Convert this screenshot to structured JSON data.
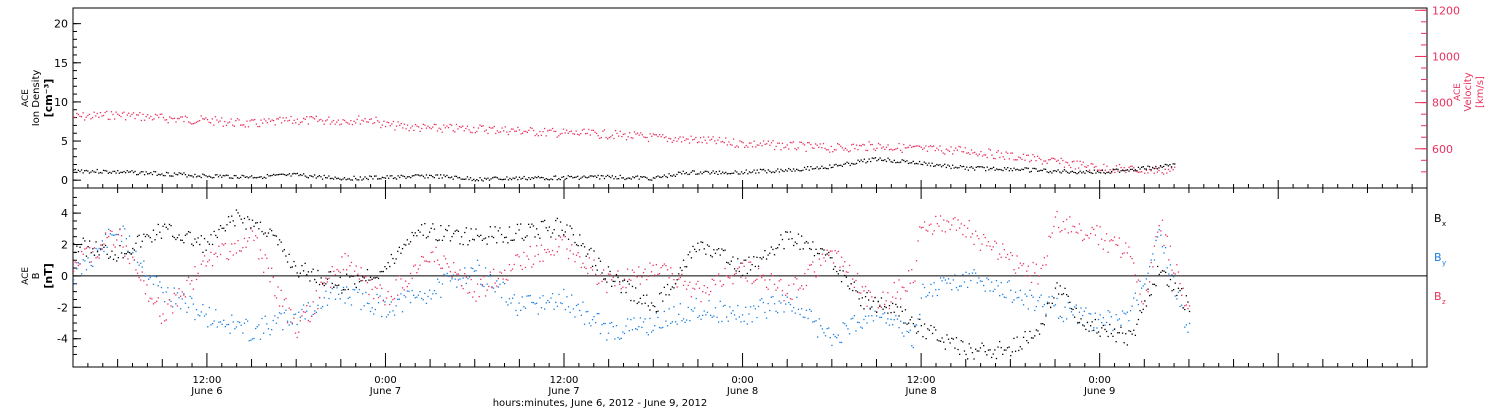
{
  "chart_data": [
    {
      "type": "scatter",
      "title": "",
      "x_range": [
        "2012-06-06 03:00",
        "2012-06-09 22:00"
      ],
      "x_ticks": [
        {
          "time": "2012-06-06 12:00",
          "label": "12:00",
          "sub": "June 6"
        },
        {
          "time": "2012-06-07 00:00",
          "label": "0:00",
          "sub": "June 7"
        },
        {
          "time": "2012-06-07 12:00",
          "label": "12:00",
          "sub": "June 7"
        },
        {
          "time": "2012-06-08 00:00",
          "label": "0:00",
          "sub": "June 8"
        },
        {
          "time": "2012-06-08 12:00",
          "label": "12:00",
          "sub": "June 8"
        },
        {
          "time": "2012-06-09 00:00",
          "label": "0:00",
          "sub": "June 9"
        }
      ],
      "ylabel": {
        "line1": "ACE",
        "line2": "Ion Density",
        "units": "[cm⁻³]"
      },
      "y_ticks": [
        "0",
        "5",
        "10",
        "15",
        "20"
      ],
      "ylim": [
        -1,
        22
      ],
      "y2label": {
        "line1": "ACE",
        "line2": "Velocity",
        "units": "[km/s]"
      },
      "y2_ticks": [
        "600",
        "800",
        "1000",
        "1200"
      ],
      "y2lim": [
        430,
        1210
      ],
      "series": [
        {
          "axis": "left",
          "color": "#000000",
          "points": [
            [
              "2012-06-06 03:00",
              1.3
            ],
            [
              "2012-06-06 06:00",
              1.1
            ],
            [
              "2012-06-06 09:00",
              0.9
            ],
            [
              "2012-06-06 12:00",
              0.6
            ],
            [
              "2012-06-06 15:00",
              0.5
            ],
            [
              "2012-06-06 18:00",
              0.7
            ],
            [
              "2012-06-06 21:00",
              0.3
            ],
            [
              "2012-06-07 00:00",
              0.4
            ],
            [
              "2012-06-07 03:00",
              0.6
            ],
            [
              "2012-06-07 06:00",
              0.2
            ],
            [
              "2012-06-07 09:00",
              0.3
            ],
            [
              "2012-06-07 12:00",
              0.4
            ],
            [
              "2012-06-07 15:00",
              0.5
            ],
            [
              "2012-06-07 18:00",
              0.3
            ],
            [
              "2012-06-07 20:00",
              1.0
            ],
            [
              "2012-06-08 00:00",
              1.1
            ],
            [
              "2012-06-08 03:00",
              1.4
            ],
            [
              "2012-06-08 06:00",
              1.8
            ],
            [
              "2012-06-08 09:00",
              2.8
            ],
            [
              "2012-06-08 12:00",
              2.2
            ],
            [
              "2012-06-08 15:00",
              1.6
            ],
            [
              "2012-06-08 18:00",
              1.5
            ],
            [
              "2012-06-08 21:00",
              1.2
            ],
            [
              "2012-06-09 00:00",
              1.1
            ],
            [
              "2012-06-09 03:00",
              1.6
            ],
            [
              "2012-06-09 05:00",
              2.0
            ]
          ]
        },
        {
          "axis": "right",
          "color": "#e8325f",
          "points": [
            [
              "2012-06-06 03:00",
              740
            ],
            [
              "2012-06-06 06:00",
              750
            ],
            [
              "2012-06-06 09:00",
              735
            ],
            [
              "2012-06-06 12:00",
              725
            ],
            [
              "2012-06-06 15:00",
              710
            ],
            [
              "2012-06-06 18:00",
              725
            ],
            [
              "2012-06-06 21:00",
              725
            ],
            [
              "2012-06-06 23:00",
              730
            ],
            [
              "2012-06-07 00:00",
              705
            ],
            [
              "2012-06-07 03:00",
              690
            ],
            [
              "2012-06-07 06:00",
              690
            ],
            [
              "2012-06-07 09:00",
              680
            ],
            [
              "2012-06-07 12:00",
              670
            ],
            [
              "2012-06-07 15:00",
              665
            ],
            [
              "2012-06-07 18:00",
              650
            ],
            [
              "2012-06-07 21:00",
              640
            ],
            [
              "2012-06-08 00:00",
              625
            ],
            [
              "2012-06-08 03:00",
              615
            ],
            [
              "2012-06-08 06:00",
              605
            ],
            [
              "2012-06-08 09:00",
              615
            ],
            [
              "2012-06-08 12:00",
              600
            ],
            [
              "2012-06-08 15:00",
              595
            ],
            [
              "2012-06-08 18:00",
              570
            ],
            [
              "2012-06-08 21:00",
              545
            ],
            [
              "2012-06-09 00:00",
              520
            ],
            [
              "2012-06-09 03:00",
              510
            ],
            [
              "2012-06-09 05:00",
              510
            ]
          ]
        }
      ]
    },
    {
      "type": "scatter",
      "title": "",
      "ylabel": {
        "line1": "ACE",
        "line2": "B",
        "units": "[nT]"
      },
      "y_ticks": [
        "-4",
        "-2",
        "0",
        "2",
        "4"
      ],
      "ylim": [
        -5.8,
        5.6
      ],
      "xlabel": "hours:minutes, June  6, 2012 - June  9, 2012",
      "legend_position": "right",
      "series": [
        {
          "name": "Bx",
          "label_main": "B",
          "label_sub": "x",
          "color": "#000000",
          "points": [
            [
              "2012-06-06 03:00",
              2.0
            ],
            [
              "2012-06-06 06:00",
              1.5
            ],
            [
              "2012-06-06 09:00",
              3.0
            ],
            [
              "2012-06-06 12:00",
              2.0
            ],
            [
              "2012-06-06 14:00",
              3.8
            ],
            [
              "2012-06-06 16:00",
              3.0
            ],
            [
              "2012-06-06 18:00",
              0.5
            ],
            [
              "2012-06-06 21:00",
              -0.5
            ],
            [
              "2012-06-07 00:00",
              0.5
            ],
            [
              "2012-06-07 02:00",
              3.0
            ],
            [
              "2012-06-07 06:00",
              2.5
            ],
            [
              "2012-06-07 09:00",
              2.8
            ],
            [
              "2012-06-07 12:00",
              3.2
            ],
            [
              "2012-06-07 15:00",
              0.0
            ],
            [
              "2012-06-07 18:00",
              -2.0
            ],
            [
              "2012-06-07 21:00",
              2.0
            ],
            [
              "2012-06-08 00:00",
              0.5
            ],
            [
              "2012-06-08 03:00",
              2.5
            ],
            [
              "2012-06-08 06:00",
              1.0
            ],
            [
              "2012-06-08 08:00",
              -1.5
            ],
            [
              "2012-06-08 10:00",
              -2.0
            ],
            [
              "2012-06-08 11:30",
              -3.0
            ],
            [
              "2012-06-08 15:00",
              -4.8
            ],
            [
              "2012-06-08 18:00",
              -4.6
            ],
            [
              "2012-06-08 20:00",
              -3.5
            ],
            [
              "2012-06-08 21:00",
              -0.5
            ],
            [
              "2012-06-08 23:00",
              -3.0
            ],
            [
              "2012-06-09 02:00",
              -4.0
            ],
            [
              "2012-06-09 04:00",
              0.5
            ],
            [
              "2012-06-09 06:00",
              -2.0
            ]
          ]
        },
        {
          "name": "By",
          "label_main": "B",
          "label_sub": "y",
          "color": "#1a7ee0",
          "points": [
            [
              "2012-06-06 03:00",
              0.0
            ],
            [
              "2012-06-06 06:00",
              3.0
            ],
            [
              "2012-06-06 09:00",
              -1.0
            ],
            [
              "2012-06-06 12:00",
              -2.5
            ],
            [
              "2012-06-06 15:00",
              -3.5
            ],
            [
              "2012-06-06 18:00",
              -2.5
            ],
            [
              "2012-06-06 21:00",
              -1.0
            ],
            [
              "2012-06-07 00:00",
              -2.0
            ],
            [
              "2012-06-07 03:00",
              -1.0
            ],
            [
              "2012-06-07 06:00",
              0.5
            ],
            [
              "2012-06-07 09:00",
              -2.0
            ],
            [
              "2012-06-07 12:00",
              -1.5
            ],
            [
              "2012-06-07 15:00",
              -3.5
            ],
            [
              "2012-06-07 18:00",
              -3.0
            ],
            [
              "2012-06-07 21:00",
              -2.0
            ],
            [
              "2012-06-08 00:00",
              -2.5
            ],
            [
              "2012-06-08 03:00",
              -1.5
            ],
            [
              "2012-06-08 06:00",
              -4.0
            ],
            [
              "2012-06-08 09:00",
              -2.0
            ],
            [
              "2012-06-08 11:30",
              -4.0
            ],
            [
              "2012-06-08 12:00",
              -1.0
            ],
            [
              "2012-06-08 15:00",
              0.0
            ],
            [
              "2012-06-08 18:00",
              -1.0
            ],
            [
              "2012-06-08 21:00",
              -2.0
            ],
            [
              "2012-06-09 00:00",
              -3.0
            ],
            [
              "2012-06-09 02:00",
              -2.5
            ],
            [
              "2012-06-09 04:00",
              2.5
            ],
            [
              "2012-06-09 06:00",
              -3.5
            ]
          ]
        },
        {
          "name": "Bz",
          "label_main": "B",
          "label_sub": "z",
          "color": "#e8325f",
          "points": [
            [
              "2012-06-06 03:00",
              1.0
            ],
            [
              "2012-06-06 06:00",
              2.5
            ],
            [
              "2012-06-06 09:00",
              -2.5
            ],
            [
              "2012-06-06 12:00",
              1.0
            ],
            [
              "2012-06-06 15:00",
              2.5
            ],
            [
              "2012-06-06 18:00",
              -3.5
            ],
            [
              "2012-06-06 21:00",
              1.0
            ],
            [
              "2012-06-07 00:00",
              -1.5
            ],
            [
              "2012-06-07 03:00",
              1.5
            ],
            [
              "2012-06-07 06:00",
              -1.0
            ],
            [
              "2012-06-07 09:00",
              1.0
            ],
            [
              "2012-06-07 12:00",
              2.0
            ],
            [
              "2012-06-07 15:00",
              -0.5
            ],
            [
              "2012-06-07 18:00",
              0.5
            ],
            [
              "2012-06-07 21:00",
              -1.0
            ],
            [
              "2012-06-08 00:00",
              0.5
            ],
            [
              "2012-06-08 03:00",
              -1.0
            ],
            [
              "2012-06-08 06:00",
              1.5
            ],
            [
              "2012-06-08 09:00",
              -2.0
            ],
            [
              "2012-06-08 11:30",
              0.0
            ],
            [
              "2012-06-08 12:00",
              3.5
            ],
            [
              "2012-06-08 15:00",
              3.0
            ],
            [
              "2012-06-08 18:00",
              1.0
            ],
            [
              "2012-06-08 20:00",
              0.0
            ],
            [
              "2012-06-08 21:00",
              3.5
            ],
            [
              "2012-06-09 00:00",
              2.5
            ],
            [
              "2012-06-09 02:00",
              1.5
            ],
            [
              "2012-06-09 03:00",
              -2.0
            ],
            [
              "2012-06-09 04:00",
              3.5
            ],
            [
              "2012-06-09 06:00",
              -2.5
            ]
          ]
        }
      ]
    }
  ]
}
